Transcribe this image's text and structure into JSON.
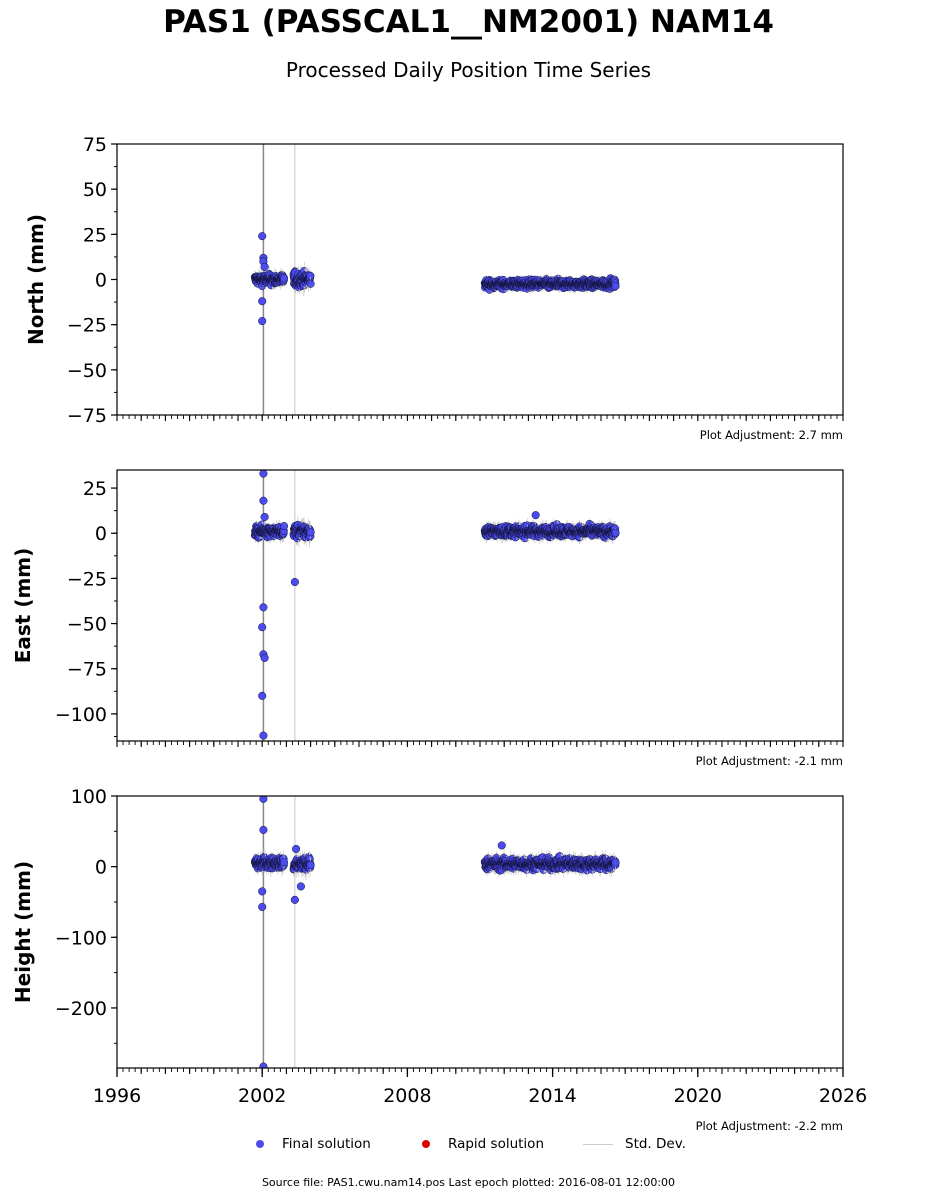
{
  "title": "PAS1 (PASSCAL1__NM2001) NAM14",
  "subtitle": "Processed Daily Position Time Series",
  "footer": "Source file: PAS1.cwu.nam14.pos  Last epoch plotted: 2016-08-01 12:00:00",
  "legend": {
    "final": "Final solution",
    "rapid": "Rapid solution",
    "stddev": "Std. Dev."
  },
  "colors": {
    "final": "#4b4bf0",
    "rapid": "#dd0000",
    "stddev": "#cccccc"
  },
  "chart_data": [
    {
      "type": "scatter",
      "ylabel": "North (mm)",
      "adjustment": "Plot Adjustment: 2.7 mm",
      "xlim": [
        1996,
        2026
      ],
      "ylim": [
        -75,
        75
      ],
      "yticks": [
        75,
        50,
        25,
        0,
        -25,
        -50,
        -75
      ],
      "ytick_labels": [
        "75",
        "50",
        "25",
        "0",
        "−25",
        "−50",
        "−75"
      ],
      "grid": false,
      "series": [
        {
          "name": "Final solution",
          "segments": [
            {
              "x_start": 2001.7,
              "x_end": 2002.9,
              "center": 0,
              "spread": 2.5
            },
            {
              "x_start": 2003.3,
              "x_end": 2004.0,
              "center": 0,
              "spread": 3.5
            },
            {
              "x_start": 2011.2,
              "x_end": 2016.6,
              "center": -2.5,
              "spread": 2.0
            }
          ],
          "outliers": [
            [
              2002.0,
              24
            ],
            [
              2002.05,
              12
            ],
            [
              2002.05,
              10
            ],
            [
              2002.0,
              -12
            ],
            [
              2002.0,
              -23
            ],
            [
              2002.1,
              7
            ]
          ]
        }
      ]
    },
    {
      "type": "scatter",
      "ylabel": "East (mm)",
      "adjustment": "Plot Adjustment: -2.1 mm",
      "xlim": [
        1996,
        2026
      ],
      "ylim": [
        -115,
        35
      ],
      "yticks": [
        25,
        0,
        -25,
        -50,
        -75,
        -100
      ],
      "ytick_labels": [
        "25",
        "0",
        "−25",
        "−50",
        "−75",
        "−100"
      ],
      "grid": false,
      "series": [
        {
          "name": "Final solution",
          "segments": [
            {
              "x_start": 2001.7,
              "x_end": 2002.9,
              "center": 1,
              "spread": 2.5
            },
            {
              "x_start": 2003.3,
              "x_end": 2004.0,
              "center": 1,
              "spread": 3.5
            },
            {
              "x_start": 2011.2,
              "x_end": 2016.6,
              "center": 1,
              "spread": 2.5
            }
          ],
          "outliers": [
            [
              2002.05,
              33
            ],
            [
              2002.05,
              18
            ],
            [
              2002.1,
              9
            ],
            [
              2002.05,
              -41
            ],
            [
              2002.0,
              -52
            ],
            [
              2002.05,
              -67
            ],
            [
              2002.1,
              -69
            ],
            [
              2002.0,
              -90
            ],
            [
              2002.05,
              -112
            ],
            [
              2003.35,
              -27
            ],
            [
              2013.3,
              10
            ]
          ]
        }
      ]
    },
    {
      "type": "scatter",
      "ylabel": "Height (mm)",
      "adjustment": "Plot Adjustment: -2.2 mm",
      "xlim": [
        1996,
        2026
      ],
      "ylim": [
        -285,
        100
      ],
      "yticks": [
        100,
        0,
        -100,
        -200
      ],
      "ytick_labels": [
        "100",
        "0",
        "−100",
        "−200"
      ],
      "xticks": [
        1996,
        2002,
        2008,
        2014,
        2020,
        2026
      ],
      "xtick_labels": [
        "1996",
        "2002",
        "2008",
        "2014",
        "2020",
        "2026"
      ],
      "grid": false,
      "series": [
        {
          "name": "Final solution",
          "segments": [
            {
              "x_start": 2001.7,
              "x_end": 2002.9,
              "center": 5,
              "spread": 7
            },
            {
              "x_start": 2003.3,
              "x_end": 2004.0,
              "center": 3,
              "spread": 9
            },
            {
              "x_start": 2011.2,
              "x_end": 2016.6,
              "center": 4,
              "spread": 7
            }
          ],
          "outliers": [
            [
              2002.05,
              96
            ],
            [
              2002.05,
              52
            ],
            [
              2002.0,
              -35
            ],
            [
              2002.0,
              -57
            ],
            [
              2002.05,
              -283
            ],
            [
              2003.35,
              -47
            ],
            [
              2003.6,
              -28
            ],
            [
              2003.4,
              25
            ],
            [
              2011.9,
              30
            ]
          ]
        }
      ]
    }
  ]
}
